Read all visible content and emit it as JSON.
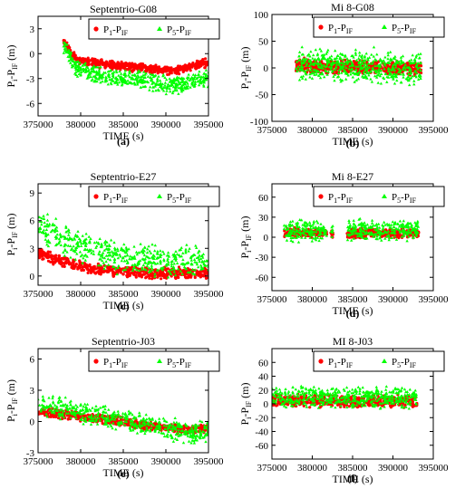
{
  "chart_data": [
    {
      "type": "scatter",
      "title": "Septentrio-G08",
      "panel_label": "(a)",
      "xlabel": "TIME (s)",
      "ylabel_main": "P",
      "ylabel_sub": "i",
      "ylabel_mid": "-P",
      "ylabel_sub2": "IF",
      "ylabel_unit": "(m)",
      "xlim": [
        375000,
        395000
      ],
      "ylim": [
        -7.5,
        4.5
      ],
      "xticks": [
        375000,
        380000,
        385000,
        390000,
        395000
      ],
      "xticklabels": [
        "375000",
        "380000",
        "385000",
        "390000",
        "395000"
      ],
      "yticks": [
        -6,
        -3,
        0,
        3
      ],
      "yticklabels": [
        "-6",
        "-3",
        "0",
        "3"
      ],
      "legend_position": "top-right",
      "series": [
        {
          "name": "P1-PIF",
          "name_main": "P",
          "name_sub": "1",
          "name_mid": "-P",
          "name_sub2": "IF",
          "color": "#ff0000",
          "marker": "circle",
          "x": [
            378000,
            379000,
            380000,
            381000,
            382000,
            383000,
            384000,
            385000,
            386000,
            387000,
            388000,
            389000,
            390000,
            391000,
            392000,
            393000,
            394000,
            395000
          ],
          "y": [
            1.5,
            -0.2,
            -0.8,
            -1.0,
            -1.2,
            -1.3,
            -1.4,
            -1.5,
            -1.6,
            -1.7,
            -1.8,
            -1.9,
            -2.0,
            -2.0,
            -1.8,
            -1.5,
            -1.3,
            -1.1
          ],
          "spread": 0.6
        },
        {
          "name": "P5-PIF",
          "name_main": "P",
          "name_sub": "5",
          "name_mid": "-P",
          "name_sub2": "IF",
          "color": "#00ff00",
          "marker": "triangle",
          "x": [
            378000,
            379000,
            380000,
            381000,
            382000,
            383000,
            384000,
            385000,
            386000,
            387000,
            388000,
            389000,
            390000,
            391000,
            392000,
            393000,
            394000,
            395000
          ],
          "y": [
            1.0,
            -1.2,
            -2.0,
            -2.3,
            -2.5,
            -2.7,
            -2.9,
            -3.0,
            -3.1,
            -3.2,
            -3.3,
            -3.5,
            -3.7,
            -3.8,
            -3.6,
            -3.3,
            -3.2,
            -3.0
          ],
          "spread": 1.3
        }
      ]
    },
    {
      "type": "scatter",
      "title": "Mi 8-G08",
      "panel_label": "(b)",
      "xlabel": "TIME (s)",
      "ylabel_main": "P",
      "ylabel_sub": "i",
      "ylabel_mid": "-P",
      "ylabel_sub2": "IF",
      "ylabel_unit": "(m)",
      "xlim": [
        375000,
        395000
      ],
      "ylim": [
        -100,
        100
      ],
      "xticks": [
        375000,
        380000,
        385000,
        390000,
        395000
      ],
      "xticklabels": [
        "375000",
        "380000",
        "385000",
        "390000",
        "395000"
      ],
      "yticks": [
        -100,
        -50,
        0,
        50,
        100
      ],
      "yticklabels": [
        "-100",
        "-50",
        "0",
        "50",
        "100"
      ],
      "legend_position": "top-right",
      "series": [
        {
          "name": "P1-PIF",
          "name_main": "P",
          "name_sub": "1",
          "name_mid": "-P",
          "name_sub2": "IF",
          "color": "#ff0000",
          "marker": "circle",
          "x": [
            378000,
            380000,
            382000,
            384000,
            386000,
            388000,
            390000,
            392000,
            393500
          ],
          "y": [
            5,
            3,
            2,
            2,
            1,
            1,
            0,
            0,
            0
          ],
          "spread": 15
        },
        {
          "name": "P5-PIF",
          "name_main": "P",
          "name_sub": "5",
          "name_mid": "-P",
          "name_sub2": "IF",
          "color": "#00ff00",
          "marker": "triangle",
          "x": [
            378000,
            380000,
            382000,
            384000,
            386000,
            388000,
            390000,
            392000,
            393500
          ],
          "y": [
            10,
            5,
            5,
            5,
            5,
            5,
            0,
            -5,
            0
          ],
          "spread": 35
        }
      ]
    },
    {
      "type": "scatter",
      "title": "Septentrio-E27",
      "panel_label": "(c)",
      "xlabel": "TIME (s)",
      "ylabel_main": "P",
      "ylabel_sub": "i",
      "ylabel_mid": "-P",
      "ylabel_sub2": "IF",
      "ylabel_unit": "(m)",
      "xlim": [
        375000,
        395000
      ],
      "ylim": [
        -1,
        10
      ],
      "xticks": [
        375000,
        380000,
        385000,
        390000,
        395000
      ],
      "xticklabels": [
        "375000",
        "380000",
        "385000",
        "390000",
        "395000"
      ],
      "yticks": [
        0,
        3,
        6,
        9
      ],
      "yticklabels": [
        "0",
        "3",
        "6",
        "9"
      ],
      "legend_position": "top-right",
      "series": [
        {
          "name": "P1-PIF",
          "name_main": "P",
          "name_sub": "1",
          "name_mid": "-P",
          "name_sub2": "IF",
          "color": "#ff0000",
          "marker": "circle",
          "x": [
            375000,
            377000,
            379000,
            381000,
            383000,
            385000,
            387000,
            389000,
            391000,
            393000,
            395000
          ],
          "y": [
            2.5,
            1.8,
            1.3,
            0.9,
            0.6,
            0.4,
            0.3,
            0.3,
            0.3,
            0.3,
            0.3
          ],
          "spread": 0.7
        },
        {
          "name": "P5-PIF",
          "name_main": "P",
          "name_sub": "5",
          "name_mid": "-P",
          "name_sub2": "IF",
          "color": "#00ff00",
          "marker": "triangle",
          "x": [
            375000,
            377000,
            379000,
            381000,
            383000,
            385000,
            387000,
            389000,
            391000,
            393000,
            395000
          ],
          "y": [
            5.5,
            4.5,
            3.5,
            2.8,
            2.3,
            2.0,
            1.8,
            1.7,
            1.7,
            1.7,
            1.7
          ],
          "spread": 2.0
        }
      ]
    },
    {
      "type": "scatter",
      "title": "Mi 8-E27",
      "panel_label": "(d)",
      "xlabel": "TIME (s)",
      "ylabel_main": "P",
      "ylabel_sub": "i",
      "ylabel_mid": "-P",
      "ylabel_sub2": "IF",
      "ylabel_unit": "(m)",
      "xlim": [
        375000,
        395000
      ],
      "ylim": [
        -80,
        80
      ],
      "xticks": [
        375000,
        380000,
        385000,
        390000,
        395000
      ],
      "xticklabels": [
        "375000",
        "380000",
        "385000",
        "390000",
        "395000"
      ],
      "yticks": [
        -60,
        -30,
        0,
        30,
        60
      ],
      "yticklabels": [
        "-60",
        "-30",
        "0",
        "30",
        "60"
      ],
      "legend_position": "top-right",
      "series": [
        {
          "name": "P1-PIF",
          "name_main": "P",
          "name_sub": "1",
          "name_mid": "-P",
          "name_sub2": "IF",
          "color": "#ff0000",
          "marker": "circle",
          "x": [
            376500,
            377500,
            378500,
            379500,
            380500,
            381500,
            382500,
            384500,
            385500,
            386500,
            387500,
            388500,
            389500,
            390500,
            391500,
            392500,
            393200
          ],
          "y": [
            7,
            7,
            7,
            7,
            6,
            6,
            6,
            6,
            6,
            6,
            6,
            6,
            6,
            6,
            6,
            6,
            6
          ],
          "spread": 8
        },
        {
          "name": "P5-PIF",
          "name_main": "P",
          "name_sub": "5",
          "name_mid": "-P",
          "name_sub2": "IF",
          "color": "#00ff00",
          "marker": "triangle",
          "x": [
            376500,
            377500,
            378500,
            379500,
            380500,
            381500,
            382500,
            384500,
            385500,
            386500,
            387500,
            388500,
            389500,
            390500,
            391500,
            392500,
            393200
          ],
          "y": [
            10,
            10,
            10,
            10,
            10,
            10,
            8,
            12,
            10,
            10,
            10,
            10,
            10,
            10,
            10,
            10,
            10
          ],
          "spread": 18
        }
      ]
    },
    {
      "type": "scatter",
      "title": "Septentrio-J03",
      "panel_label": "(e)",
      "xlabel": "TIME (s)",
      "ylabel_main": "P",
      "ylabel_sub": "i",
      "ylabel_mid": "-P",
      "ylabel_sub2": "IF",
      "ylabel_unit": "(m)",
      "xlim": [
        375000,
        395000
      ],
      "ylim": [
        -3,
        7
      ],
      "xticks": [
        375000,
        380000,
        385000,
        390000,
        395000
      ],
      "xticklabels": [
        "375000",
        "380000",
        "385000",
        "390000",
        "395000"
      ],
      "yticks": [
        -3,
        0,
        3,
        6
      ],
      "yticklabels": [
        "-3",
        "0",
        "3",
        "6"
      ],
      "legend_position": "top-right",
      "series": [
        {
          "name": "P1-PIF",
          "name_main": "P",
          "name_sub": "1",
          "name_mid": "-P",
          "name_sub2": "IF",
          "color": "#ff0000",
          "marker": "circle",
          "x": [
            375000,
            377000,
            379000,
            381000,
            383000,
            385000,
            387000,
            389000,
            391000,
            393000,
            395000
          ],
          "y": [
            1.0,
            0.8,
            0.6,
            0.4,
            0.2,
            0.0,
            -0.3,
            -0.5,
            -0.7,
            -0.9,
            -0.6
          ],
          "spread": 0.5
        },
        {
          "name": "P5-PIF",
          "name_main": "P",
          "name_sub": "5",
          "name_mid": "-P",
          "name_sub2": "IF",
          "color": "#00ff00",
          "marker": "triangle",
          "x": [
            375000,
            377000,
            379000,
            381000,
            383000,
            385000,
            387000,
            389000,
            391000,
            393000,
            395000
          ],
          "y": [
            1.8,
            1.4,
            1.1,
            0.8,
            0.5,
            0.2,
            -0.2,
            -0.5,
            -0.8,
            -1.2,
            -0.9
          ],
          "spread": 1.2
        }
      ]
    },
    {
      "type": "scatter",
      "title": "MI 8-J03",
      "panel_label": "(f)",
      "xlabel": "TIME (s)",
      "ylabel_main": "P",
      "ylabel_sub": "i",
      "ylabel_mid": "-P",
      "ylabel_sub2": "IF",
      "ylabel_unit": "(m)",
      "xlim": [
        375000,
        395000
      ],
      "ylim": [
        -80,
        80
      ],
      "xticks": [
        375000,
        380000,
        385000,
        390000,
        395000
      ],
      "xticklabels": [
        "375000",
        "380000",
        "385000",
        "390000",
        "395000"
      ],
      "yticks": [
        -60,
        -40,
        -20,
        0,
        20,
        40,
        60
      ],
      "yticklabels": [
        "-60",
        "-40",
        "-20",
        "0",
        "20",
        "40",
        "60"
      ],
      "legend_position": "top-right",
      "series": [
        {
          "name": "P1-PIF",
          "name_main": "P",
          "name_sub": "1",
          "name_mid": "-P",
          "name_sub2": "IF",
          "color": "#ff0000",
          "marker": "circle",
          "x": [
            375000,
            377000,
            379000,
            381000,
            383000,
            385000,
            387000,
            389000,
            391000,
            393000
          ],
          "y": [
            5,
            5,
            5,
            4,
            4,
            4,
            4,
            4,
            4,
            4
          ],
          "spread": 10
        },
        {
          "name": "P5-PIF",
          "name_main": "P",
          "name_sub": "5",
          "name_mid": "-P",
          "name_sub2": "IF",
          "color": "#00ff00",
          "marker": "triangle",
          "x": [
            375000,
            377000,
            379000,
            381000,
            383000,
            385000,
            387000,
            389000,
            391000,
            393000
          ],
          "y": [
            10,
            10,
            10,
            9,
            9,
            9,
            9,
            9,
            9,
            9
          ],
          "spread": 17
        }
      ]
    }
  ]
}
